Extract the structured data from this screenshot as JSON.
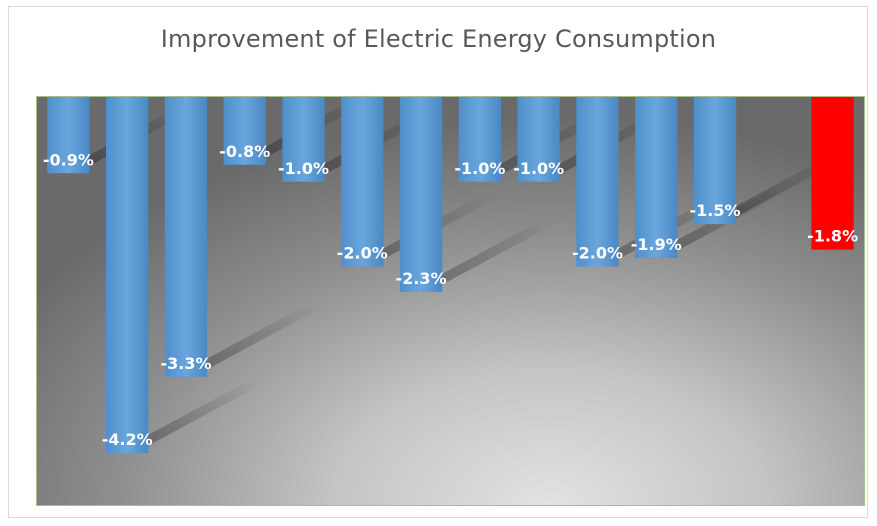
{
  "chart_data": {
    "type": "bar",
    "title": "Improvement of Electric Energy Consumption",
    "xlabel": "",
    "ylabel": "",
    "ylim": [
      -4.5,
      0
    ],
    "grid": false,
    "legend": "none",
    "values": [
      -0.9,
      -4.2,
      -3.3,
      -0.8,
      -1.0,
      -2.0,
      -2.3,
      -1.0,
      -1.0,
      -2.0,
      -1.9,
      -1.5,
      null,
      -1.8
    ],
    "labels": [
      "-0.9%",
      "-4.2%",
      "-3.3%",
      "-0.8%",
      "-1.0%",
      "-2.0%",
      "-2.3%",
      "-1.0%",
      "-1.0%",
      "-2.0%",
      "-1.9%",
      "-1.5%",
      "",
      "-1.8%"
    ],
    "highlight_index": 13
  },
  "colors": {
    "bar": "#5b9bd5",
    "highlight": "#ff0000",
    "title": "#595959",
    "label": "#ffffff"
  }
}
